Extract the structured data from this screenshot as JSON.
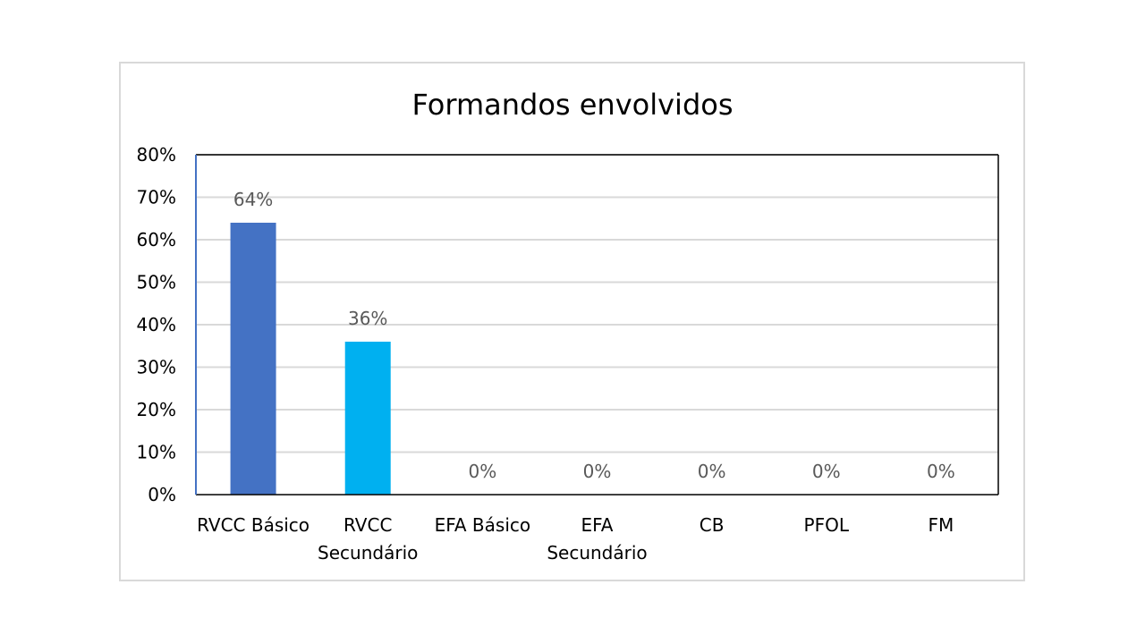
{
  "chart_data": {
    "type": "bar",
    "title": "Formandos envolvidos",
    "xlabel": "",
    "ylabel": "",
    "ylim": [
      0,
      80
    ],
    "yticks": [
      "0%",
      "10%",
      "20%",
      "30%",
      "40%",
      "50%",
      "60%",
      "70%",
      "80%"
    ],
    "categories": [
      [
        "RVCC Básico"
      ],
      [
        "RVCC",
        "Secundário"
      ],
      [
        "EFA Básico"
      ],
      [
        "EFA",
        "Secundário"
      ],
      [
        "CB"
      ],
      [
        "PFOL"
      ],
      [
        "FM"
      ]
    ],
    "values": [
      64,
      36,
      0,
      0,
      0,
      0,
      0
    ],
    "data_labels": [
      "64%",
      "36%",
      "0%",
      "0%",
      "0%",
      "0%",
      "0%"
    ],
    "bar_colors": [
      "#4472c4",
      "#00b0f0",
      "#4472c4",
      "#4472c4",
      "#4472c4",
      "#4472c4",
      "#4472c4"
    ],
    "grid": true,
    "legend": "none"
  }
}
